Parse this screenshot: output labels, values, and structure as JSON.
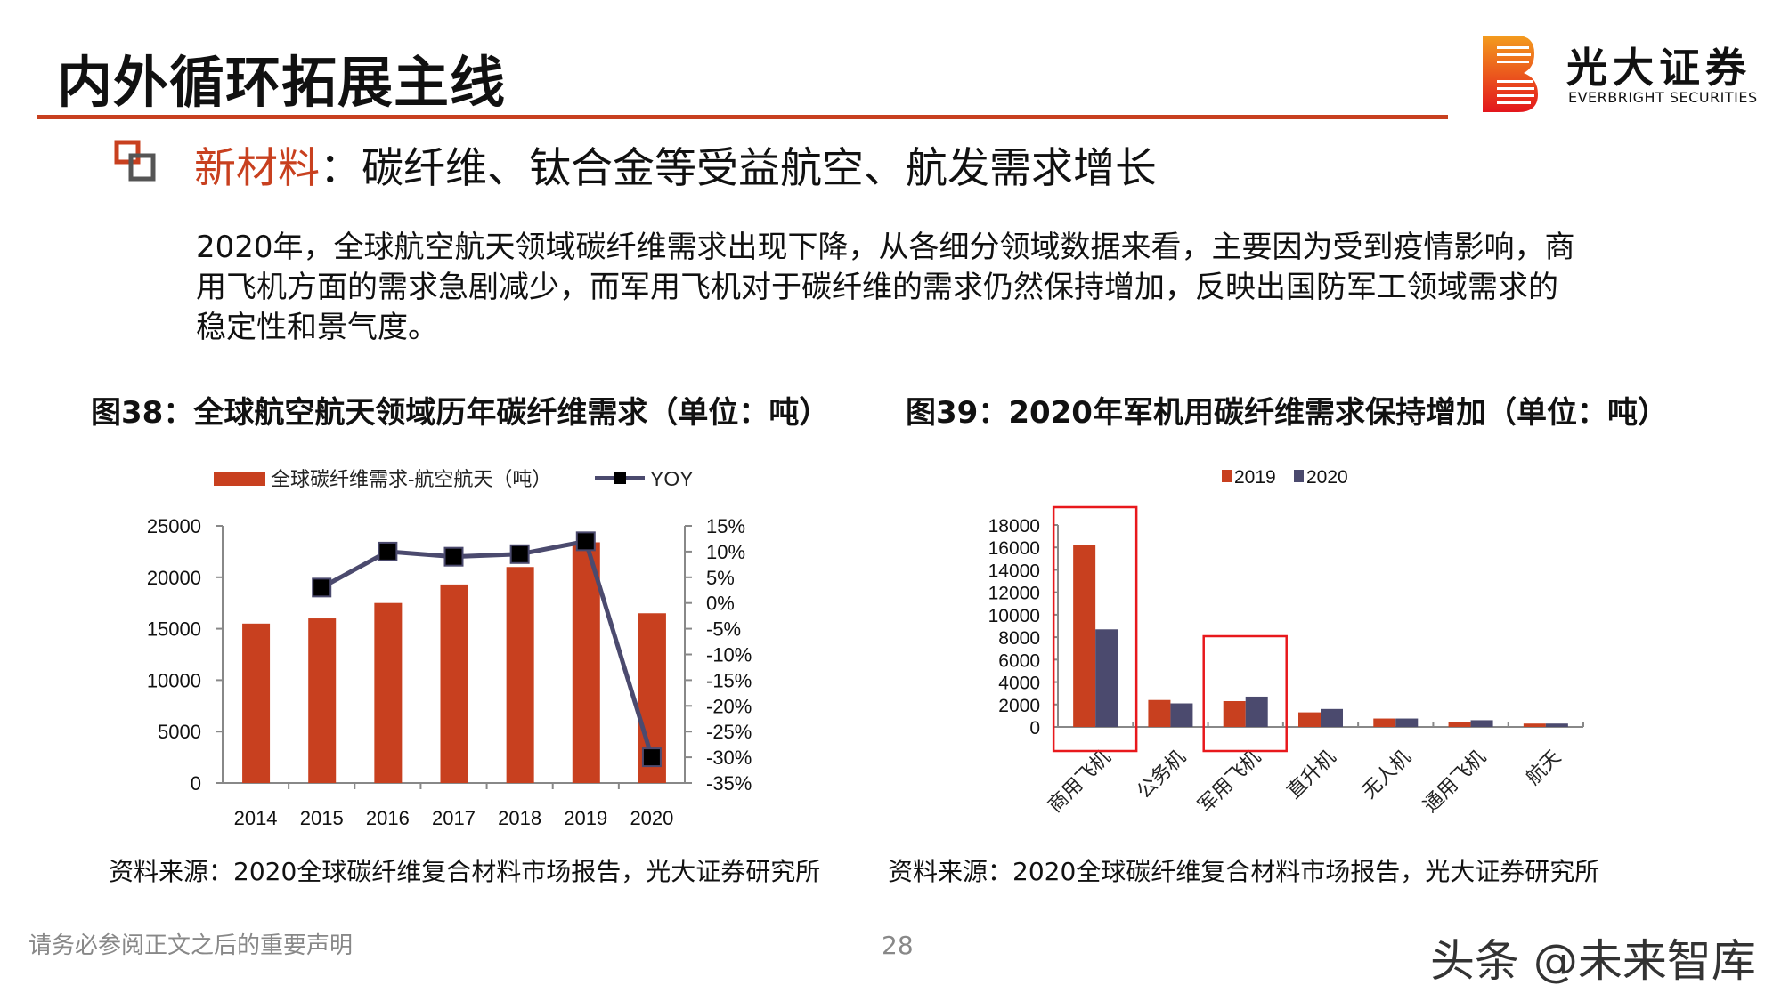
{
  "header": {
    "title": "内外循环拓展主线",
    "logo": {
      "name_cn": "光大证券",
      "name_en": "EVERBRIGHT SECURITIES"
    },
    "accent_color": "#c8401f"
  },
  "section": {
    "highlight": "新材料",
    "subtitle_rest": "：碳纤维、钛合金等受益航空、航发需求增长",
    "paragraph": "2020年，全球航空航天领域碳纤维需求出现下降，从各细分领域数据来看，主要因为受到疫情影响，商用飞机方面的需求急剧减少，而军用飞机对于碳纤维的需求仍然保持增加，反映出国防军工领域需求的稳定性和景气度。"
  },
  "figures": {
    "fig38_caption": "图38：全球航空航天领域历年碳纤维需求（单位：吨）",
    "fig39_caption": "图39：2020年军机用碳纤维需求保持增加（单位：吨）",
    "fig38_source": "资料来源：2020全球碳纤维复合材料市场报告，光大证券研究所",
    "fig39_source": "资料来源：2020全球碳纤维复合材料市场报告，光大证券研究所"
  },
  "chart_data": [
    {
      "type": "bar+line",
      "categories": [
        "2014",
        "2015",
        "2016",
        "2017",
        "2018",
        "2019",
        "2020"
      ],
      "series": [
        {
          "name": "全球碳纤维需求-航空航天（吨）",
          "type": "bar",
          "axis": "left",
          "color": "#c8401f",
          "values": [
            15500,
            16000,
            17500,
            19300,
            21000,
            23400,
            16500
          ]
        },
        {
          "name": "YOY",
          "type": "line",
          "axis": "right",
          "color": "#4b4a6e",
          "marker_color": "#000000",
          "values": [
            null,
            3,
            10,
            9,
            9.5,
            12,
            -30
          ]
        }
      ],
      "ylim_left": [
        0,
        25000
      ],
      "yticks_left": [
        "0",
        "5000",
        "10000",
        "15000",
        "20000",
        "25000"
      ],
      "ylim_right": [
        -35,
        15
      ],
      "yticks_right": [
        "-35%",
        "-30%",
        "-25%",
        "-20%",
        "-15%",
        "-10%",
        "-5%",
        "0%",
        "5%",
        "10%",
        "15%"
      ],
      "legend": "top",
      "grid": false
    },
    {
      "type": "bar",
      "categories": [
        "商用飞机",
        "公务机",
        "军用飞机",
        "直升机",
        "无人机",
        "通用飞机",
        "航天"
      ],
      "series": [
        {
          "name": "2019",
          "color": "#c8401f",
          "values": [
            16200,
            2400,
            2300,
            1300,
            750,
            450,
            300
          ]
        },
        {
          "name": "2020",
          "color": "#4b4a6e",
          "values": [
            8700,
            2100,
            2700,
            1600,
            750,
            600,
            300
          ]
        }
      ],
      "ylim": [
        0,
        18000
      ],
      "yticks": [
        "0",
        "2000",
        "4000",
        "6000",
        "8000",
        "10000",
        "12000",
        "14000",
        "16000",
        "18000"
      ],
      "highlighted_categories": [
        "商用飞机",
        "军用飞机"
      ],
      "highlight_color": "#e8181c",
      "legend": "top",
      "grid": false
    }
  ],
  "footer": {
    "disclaimer": "请务必参阅正文之后的重要声明",
    "page_number": "28",
    "watermark": "头条 @未来智库"
  }
}
